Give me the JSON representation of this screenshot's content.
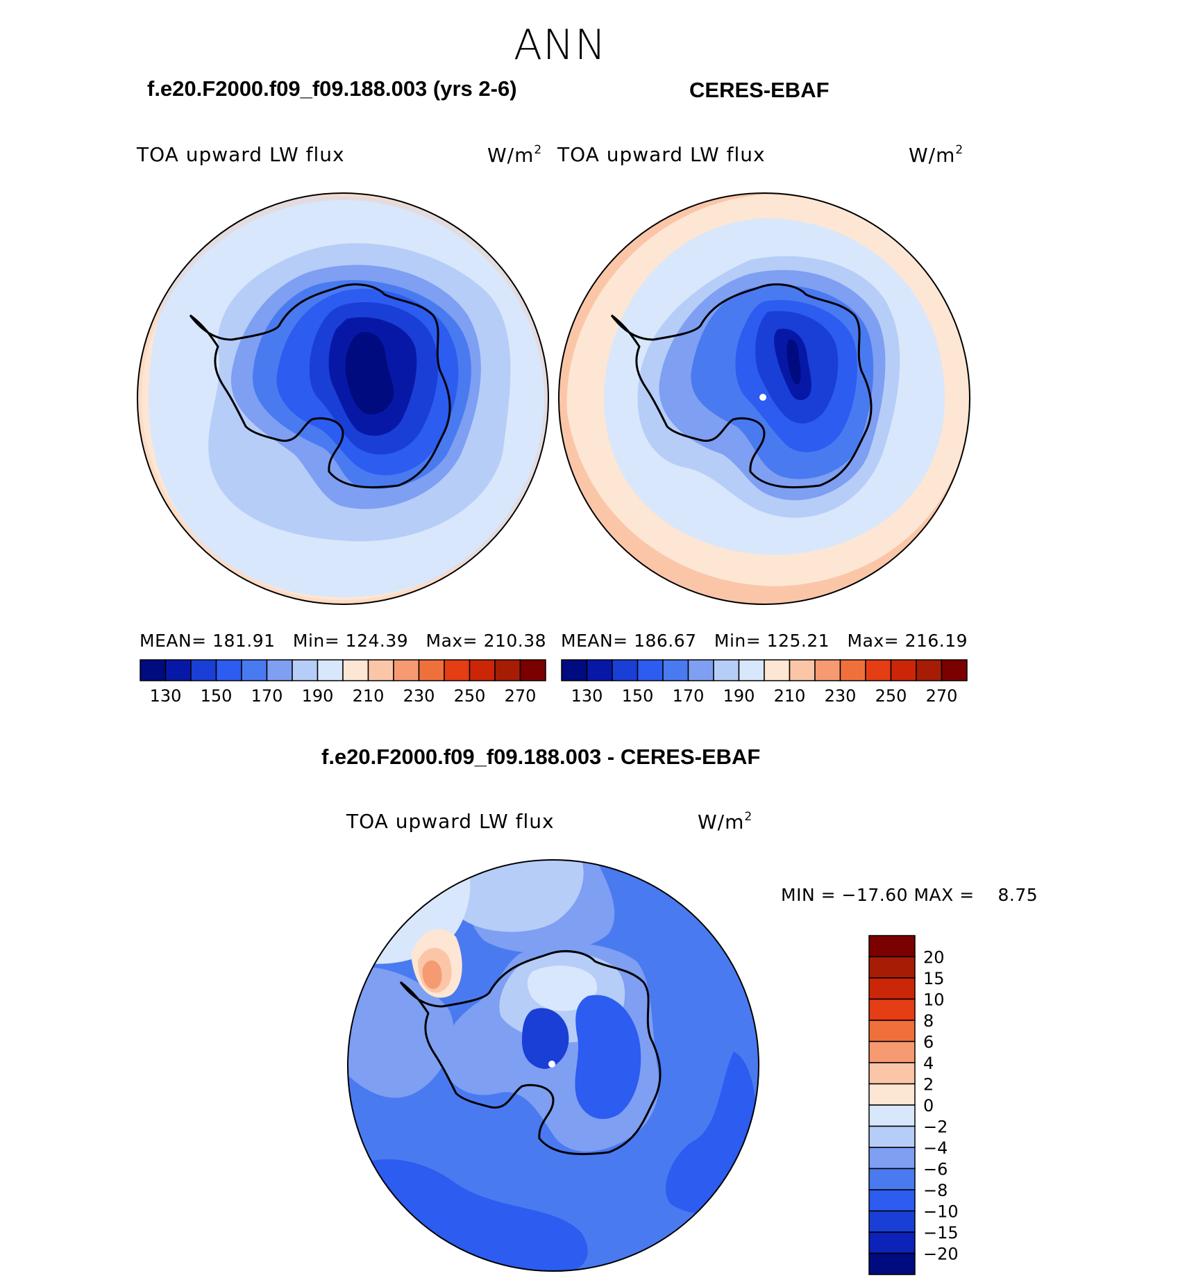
{
  "page": {
    "season": "ANN",
    "panel_titles": {
      "left": "f.e20.F2000.f09_f09.188.003 (yrs 2-6)",
      "right": "CERES-EBAF",
      "diff": "f.e20.F2000.f09_f09.188.003 - CERES-EBAF"
    }
  },
  "chart_data": [
    {
      "type": "heatmap",
      "projection": "south-polar-stereographic",
      "name": "model",
      "title": "f.e20.F2000.f09_f09.188.003 (yrs 2-6)",
      "variable": "TOA upward LW flux",
      "units": "W/m",
      "units_exponent": "2",
      "stats": {
        "mean_label": "MEAN=",
        "mean": "181.91",
        "min_label": "Min=",
        "min": "124.39",
        "max_label": "Max=",
        "max": "210.38"
      },
      "contour_levels": [
        130,
        140,
        150,
        160,
        170,
        180,
        190,
        200,
        210,
        220,
        230,
        240,
        250,
        260,
        270
      ],
      "colorbar_tick_labels": [
        "130",
        "150",
        "170",
        "190",
        "210",
        "230",
        "250",
        "270"
      ],
      "colors": [
        "#000b80",
        "#0818a6",
        "#1a3fd6",
        "#2c5cf0",
        "#4a7af0",
        "#7e9ff2",
        "#b6cdf8",
        "#d8e7fb",
        "#fde6d4",
        "#fbc6a8",
        "#f69a72",
        "#f0703c",
        "#e53d14",
        "#cc2608",
        "#a71c05",
        "#7b0000"
      ]
    },
    {
      "type": "heatmap",
      "projection": "south-polar-stereographic",
      "name": "obs",
      "title": "CERES-EBAF",
      "variable": "TOA upward LW flux",
      "units": "W/m",
      "units_exponent": "2",
      "stats": {
        "mean_label": "MEAN=",
        "mean": "186.67",
        "min_label": "Min=",
        "min": "125.21",
        "max_label": "Max=",
        "max": "216.19"
      },
      "contour_levels": [
        130,
        140,
        150,
        160,
        170,
        180,
        190,
        200,
        210,
        220,
        230,
        240,
        250,
        260,
        270
      ],
      "colorbar_tick_labels": [
        "130",
        "150",
        "170",
        "190",
        "210",
        "230",
        "250",
        "270"
      ],
      "colors": [
        "#000b80",
        "#0818a6",
        "#1a3fd6",
        "#2c5cf0",
        "#4a7af0",
        "#7e9ff2",
        "#b6cdf8",
        "#d8e7fb",
        "#fde6d4",
        "#fbc6a8",
        "#f69a72",
        "#f0703c",
        "#e53d14",
        "#cc2608",
        "#a71c05",
        "#7b0000"
      ]
    },
    {
      "type": "heatmap",
      "projection": "south-polar-stereographic",
      "name": "difference",
      "title": "f.e20.F2000.f09_f09.188.003 - CERES-EBAF",
      "variable": "TOA upward LW flux",
      "units": "W/m",
      "units_exponent": "2",
      "stats": {
        "min_label": "MIN =",
        "min": "−17.60",
        "max_label": "MAX =",
        "max": "8.75"
      },
      "contour_levels": [
        -20,
        -15,
        -10,
        -8,
        -6,
        -4,
        -2,
        0,
        2,
        4,
        6,
        8,
        10,
        15,
        20
      ],
      "colorbar_tick_labels": [
        "20",
        "15",
        "10",
        "8",
        "6",
        "4",
        "2",
        "0",
        "−2",
        "−4",
        "−6",
        "−8",
        "−10",
        "−15",
        "−20"
      ],
      "colors": [
        "#000b80",
        "#0c22b8",
        "#1a3fd6",
        "#2c5cf0",
        "#4a7af0",
        "#7e9ff2",
        "#b6cdf8",
        "#d8e7fb",
        "#fde6d4",
        "#fbc6a8",
        "#f69a72",
        "#f0703c",
        "#e53d14",
        "#cc2608",
        "#a71c05",
        "#7b0000"
      ]
    }
  ]
}
